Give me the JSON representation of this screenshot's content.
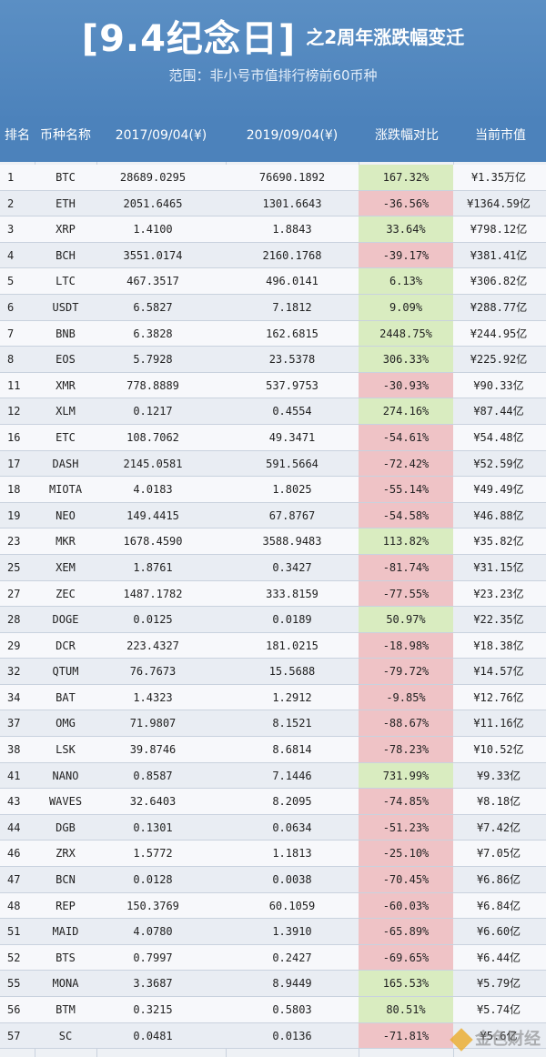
{
  "header": {
    "title": "[9.4纪念日]",
    "subtitle": "之2周年涨跌幅变迁",
    "scope": "范围：非小号市值排行榜前60币种"
  },
  "columns": {
    "rank": "排名",
    "coin": "币种名称",
    "price_2017": "2017/09/04(¥)",
    "price_2019": "2019/09/04(¥)",
    "change": "涨跌幅对比",
    "market_cap": "当前市值"
  },
  "rows": [
    {
      "rank": "1",
      "coin": "BTC",
      "p2017": "28689.0295",
      "p2019": "76690.1892",
      "change": "167.32%",
      "cap": "¥1.35万亿",
      "dir": "up"
    },
    {
      "rank": "2",
      "coin": "ETH",
      "p2017": "2051.6465",
      "p2019": "1301.6643",
      "change": "-36.56%",
      "cap": "¥1364.59亿",
      "dir": "down"
    },
    {
      "rank": "3",
      "coin": "XRP",
      "p2017": "1.4100",
      "p2019": "1.8843",
      "change": "33.64%",
      "cap": "¥798.12亿",
      "dir": "up"
    },
    {
      "rank": "4",
      "coin": "BCH",
      "p2017": "3551.0174",
      "p2019": "2160.1768",
      "change": "-39.17%",
      "cap": "¥381.41亿",
      "dir": "down"
    },
    {
      "rank": "5",
      "coin": "LTC",
      "p2017": "467.3517",
      "p2019": "496.0141",
      "change": "6.13%",
      "cap": "¥306.82亿",
      "dir": "up"
    },
    {
      "rank": "6",
      "coin": "USDT",
      "p2017": "6.5827",
      "p2019": "7.1812",
      "change": "9.09%",
      "cap": "¥288.77亿",
      "dir": "up"
    },
    {
      "rank": "7",
      "coin": "BNB",
      "p2017": "6.3828",
      "p2019": "162.6815",
      "change": "2448.75%",
      "cap": "¥244.95亿",
      "dir": "up"
    },
    {
      "rank": "8",
      "coin": "EOS",
      "p2017": "5.7928",
      "p2019": "23.5378",
      "change": "306.33%",
      "cap": "¥225.92亿",
      "dir": "up"
    },
    {
      "rank": "11",
      "coin": "XMR",
      "p2017": "778.8889",
      "p2019": "537.9753",
      "change": "-30.93%",
      "cap": "¥90.33亿",
      "dir": "down"
    },
    {
      "rank": "12",
      "coin": "XLM",
      "p2017": "0.1217",
      "p2019": "0.4554",
      "change": "274.16%",
      "cap": "¥87.44亿",
      "dir": "up"
    },
    {
      "rank": "16",
      "coin": "ETC",
      "p2017": "108.7062",
      "p2019": "49.3471",
      "change": "-54.61%",
      "cap": "¥54.48亿",
      "dir": "down"
    },
    {
      "rank": "17",
      "coin": "DASH",
      "p2017": "2145.0581",
      "p2019": "591.5664",
      "change": "-72.42%",
      "cap": "¥52.59亿",
      "dir": "down"
    },
    {
      "rank": "18",
      "coin": "MIOTA",
      "p2017": "4.0183",
      "p2019": "1.8025",
      "change": "-55.14%",
      "cap": "¥49.49亿",
      "dir": "down"
    },
    {
      "rank": "19",
      "coin": "NEO",
      "p2017": "149.4415",
      "p2019": "67.8767",
      "change": "-54.58%",
      "cap": "¥46.88亿",
      "dir": "down"
    },
    {
      "rank": "23",
      "coin": "MKR",
      "p2017": "1678.4590",
      "p2019": "3588.9483",
      "change": "113.82%",
      "cap": "¥35.82亿",
      "dir": "up"
    },
    {
      "rank": "25",
      "coin": "XEM",
      "p2017": "1.8761",
      "p2019": "0.3427",
      "change": "-81.74%",
      "cap": "¥31.15亿",
      "dir": "down"
    },
    {
      "rank": "27",
      "coin": "ZEC",
      "p2017": "1487.1782",
      "p2019": "333.8159",
      "change": "-77.55%",
      "cap": "¥23.23亿",
      "dir": "down"
    },
    {
      "rank": "28",
      "coin": "DOGE",
      "p2017": "0.0125",
      "p2019": "0.0189",
      "change": "50.97%",
      "cap": "¥22.35亿",
      "dir": "up"
    },
    {
      "rank": "29",
      "coin": "DCR",
      "p2017": "223.4327",
      "p2019": "181.0215",
      "change": "-18.98%",
      "cap": "¥18.38亿",
      "dir": "down"
    },
    {
      "rank": "32",
      "coin": "QTUM",
      "p2017": "76.7673",
      "p2019": "15.5688",
      "change": "-79.72%",
      "cap": "¥14.57亿",
      "dir": "down"
    },
    {
      "rank": "34",
      "coin": "BAT",
      "p2017": "1.4323",
      "p2019": "1.2912",
      "change": "-9.85%",
      "cap": "¥12.76亿",
      "dir": "down"
    },
    {
      "rank": "37",
      "coin": "OMG",
      "p2017": "71.9807",
      "p2019": "8.1521",
      "change": "-88.67%",
      "cap": "¥11.16亿",
      "dir": "down"
    },
    {
      "rank": "38",
      "coin": "LSK",
      "p2017": "39.8746",
      "p2019": "8.6814",
      "change": "-78.23%",
      "cap": "¥10.52亿",
      "dir": "down"
    },
    {
      "rank": "41",
      "coin": "NANO",
      "p2017": "0.8587",
      "p2019": "7.1446",
      "change": "731.99%",
      "cap": "¥9.33亿",
      "dir": "up"
    },
    {
      "rank": "43",
      "coin": "WAVES",
      "p2017": "32.6403",
      "p2019": "8.2095",
      "change": "-74.85%",
      "cap": "¥8.18亿",
      "dir": "down"
    },
    {
      "rank": "44",
      "coin": "DGB",
      "p2017": "0.1301",
      "p2019": "0.0634",
      "change": "-51.23%",
      "cap": "¥7.42亿",
      "dir": "down"
    },
    {
      "rank": "46",
      "coin": "ZRX",
      "p2017": "1.5772",
      "p2019": "1.1813",
      "change": "-25.10%",
      "cap": "¥7.05亿",
      "dir": "down"
    },
    {
      "rank": "47",
      "coin": "BCN",
      "p2017": "0.0128",
      "p2019": "0.0038",
      "change": "-70.45%",
      "cap": "¥6.86亿",
      "dir": "down"
    },
    {
      "rank": "48",
      "coin": "REP",
      "p2017": "150.3769",
      "p2019": "60.1059",
      "change": "-60.03%",
      "cap": "¥6.84亿",
      "dir": "down"
    },
    {
      "rank": "51",
      "coin": "MAID",
      "p2017": "4.0780",
      "p2019": "1.3910",
      "change": "-65.89%",
      "cap": "¥6.60亿",
      "dir": "down"
    },
    {
      "rank": "52",
      "coin": "BTS",
      "p2017": "0.7997",
      "p2019": "0.2427",
      "change": "-69.65%",
      "cap": "¥6.44亿",
      "dir": "down"
    },
    {
      "rank": "55",
      "coin": "MONA",
      "p2017": "3.3687",
      "p2019": "8.9449",
      "change": "165.53%",
      "cap": "¥5.79亿",
      "dir": "up"
    },
    {
      "rank": "56",
      "coin": "BTM",
      "p2017": "0.3215",
      "p2019": "0.5803",
      "change": "80.51%",
      "cap": "¥5.74亿",
      "dir": "up"
    },
    {
      "rank": "57",
      "coin": "SC",
      "p2017": "0.0481",
      "p2019": "0.0136",
      "change": "-71.81%",
      "cap": "¥5.6亿",
      "dir": "down"
    }
  ],
  "watermark": "金色财经",
  "colors": {
    "header_bg": "#4c82bb",
    "up_bg": "#d9ecc0",
    "down_bg": "#efc3c6"
  }
}
